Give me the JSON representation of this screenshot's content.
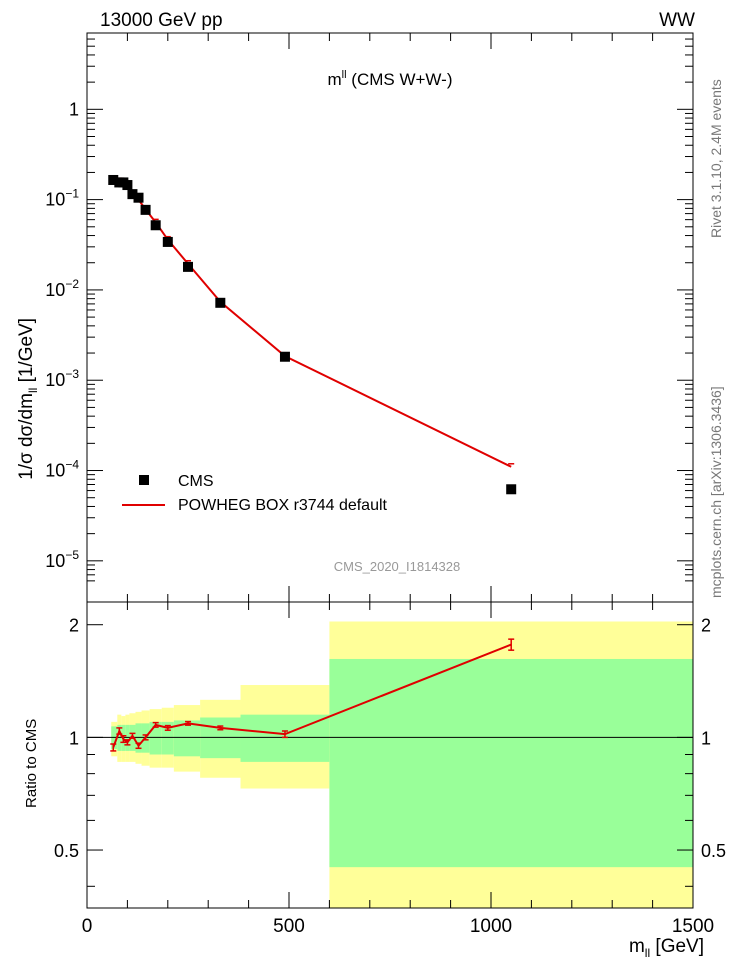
{
  "header": {
    "left": "13000 GeV pp",
    "right": "WW"
  },
  "side_labels": {
    "top": "Rivet 3.1.10, 2.4M events",
    "bottom": "mcplots.cern.ch [arXiv:1306.3436]"
  },
  "colors": {
    "mc": "#e00000",
    "data": "#000000",
    "band_inner": "#99ff99",
    "band_outer": "#ffff99",
    "watermark": "#999999"
  },
  "chart_data": [
    {
      "type": "scatter",
      "title": "m^{ll} (CMS W+W-)",
      "title_main": "m",
      "title_sup": "ll",
      "title_rest": " (CMS W+W-)",
      "ylabel": "1/σ dσ/dm_{ll} [1/GeV]",
      "ylabel_main": "1/σ dσ/dm",
      "ylabel_sub": "ll",
      "ylabel_rest": " [1/GeV]",
      "yscale": "log",
      "xlim": [
        0,
        1500
      ],
      "ylim": [
        3.5e-06,
        7
      ],
      "y_ticks": [
        {
          "value": 1,
          "base": "1",
          "exp": ""
        },
        {
          "value": 0.1,
          "base": "10",
          "exp": "−1"
        },
        {
          "value": 0.01,
          "base": "10",
          "exp": "−2"
        },
        {
          "value": 0.001,
          "base": "10",
          "exp": "−3"
        },
        {
          "value": 0.0001,
          "base": "10",
          "exp": "−4"
        },
        {
          "value": 1e-05,
          "base": "10",
          "exp": "−5"
        }
      ],
      "watermark": "CMS_2020_I1814328",
      "legend": {
        "placement": "bottom-left",
        "entries": [
          "CMS",
          "POWHEG BOX r3744 default"
        ]
      },
      "series": [
        {
          "name": "CMS",
          "style": "markers",
          "x": [
            65,
            80,
            90,
            100,
            112.5,
            127.5,
            145,
            170,
            200,
            250,
            330,
            490,
            1050
          ],
          "y": [
            0.165,
            0.155,
            0.155,
            0.145,
            0.115,
            0.105,
            0.077,
            0.052,
            0.034,
            0.018,
            0.0072,
            0.00182,
            6.2e-05
          ]
        },
        {
          "name": "POWHEG BOX r3744 default",
          "style": "line",
          "x": [
            65,
            80,
            90,
            100,
            112.5,
            127.5,
            145,
            170,
            200,
            250,
            330,
            490,
            1050
          ],
          "y": [
            0.155,
            0.16,
            0.155,
            0.14,
            0.115,
            0.1,
            0.078,
            0.056,
            0.036,
            0.0195,
            0.0074,
            0.00185,
            0.00011
          ]
        }
      ]
    },
    {
      "type": "line",
      "ylabel": "Ratio to CMS",
      "xlabel": "m_{ll} [GeV]",
      "xlabel_main": "m",
      "xlabel_sub": "ll",
      "xlabel_rest": " [GeV]",
      "xlim": [
        0,
        1500
      ],
      "ylim": [
        0.35,
        2.3
      ],
      "yscale": "log",
      "x_ticks": [
        0,
        500,
        1000,
        1500
      ],
      "y_ticks": [
        0.5,
        1,
        2
      ],
      "y_tick_labels": [
        "0.5",
        "1",
        "2"
      ],
      "reference_line": 1,
      "bins": [
        {
          "lo": 60,
          "hi": 75,
          "inner": [
            0.93,
            1.07
          ],
          "outer": [
            0.89,
            1.1
          ]
        },
        {
          "lo": 75,
          "hi": 85,
          "inner": [
            0.92,
            1.08
          ],
          "outer": [
            0.86,
            1.15
          ]
        },
        {
          "lo": 85,
          "hi": 95,
          "inner": [
            0.92,
            1.08
          ],
          "outer": [
            0.86,
            1.14
          ]
        },
        {
          "lo": 95,
          "hi": 105,
          "inner": [
            0.92,
            1.08
          ],
          "outer": [
            0.86,
            1.15
          ]
        },
        {
          "lo": 105,
          "hi": 120,
          "inner": [
            0.92,
            1.08
          ],
          "outer": [
            0.86,
            1.16
          ]
        },
        {
          "lo": 120,
          "hi": 135,
          "inner": [
            0.91,
            1.09
          ],
          "outer": [
            0.85,
            1.17
          ]
        },
        {
          "lo": 135,
          "hi": 155,
          "inner": [
            0.91,
            1.09
          ],
          "outer": [
            0.84,
            1.18
          ]
        },
        {
          "lo": 155,
          "hi": 185,
          "inner": [
            0.9,
            1.1
          ],
          "outer": [
            0.83,
            1.19
          ]
        },
        {
          "lo": 185,
          "hi": 215,
          "inner": [
            0.9,
            1.1
          ],
          "outer": [
            0.83,
            1.2
          ]
        },
        {
          "lo": 215,
          "hi": 280,
          "inner": [
            0.89,
            1.11
          ],
          "outer": [
            0.81,
            1.22
          ]
        },
        {
          "lo": 280,
          "hi": 380,
          "inner": [
            0.88,
            1.13
          ],
          "outer": [
            0.78,
            1.26
          ]
        },
        {
          "lo": 380,
          "hi": 600,
          "inner": [
            0.86,
            1.15
          ],
          "outer": [
            0.73,
            1.38
          ]
        },
        {
          "lo": 600,
          "hi": 1500,
          "inner": [
            0.45,
            1.62
          ],
          "outer": [
            0.35,
            2.04
          ]
        }
      ],
      "series": [
        {
          "name": "POWHEG BOX r3744 default",
          "x": [
            65,
            80,
            90,
            100,
            112.5,
            127.5,
            145,
            170,
            200,
            250,
            330,
            490,
            1050
          ],
          "y": [
            0.94,
            1.04,
            0.99,
            0.97,
            1.01,
            0.95,
            1.0,
            1.08,
            1.06,
            1.09,
            1.06,
            1.02,
            1.77
          ],
          "err": [
            0.02,
            0.02,
            0.02,
            0.015,
            0.015,
            0.015,
            0.015,
            0.015,
            0.015,
            0.012,
            0.012,
            0.02,
            0.06
          ]
        }
      ]
    }
  ]
}
